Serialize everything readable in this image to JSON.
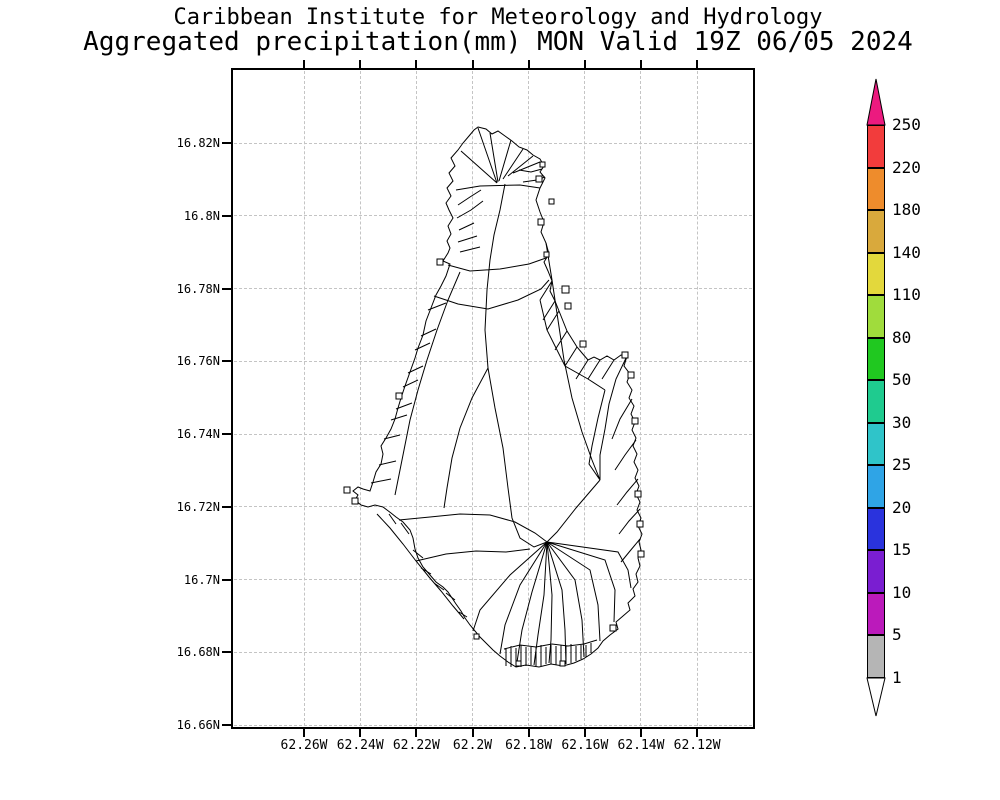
{
  "title": {
    "line1": "Caribbean Institute for Meteorology and Hydrology",
    "line2": "Aggregated precipitation(mm) MON Valid 19Z 06/05 2024"
  },
  "axes": {
    "lat_ticks": [
      {
        "label": "16.82N",
        "value": 16.82
      },
      {
        "label": "16.8N",
        "value": 16.8
      },
      {
        "label": "16.78N",
        "value": 16.78
      },
      {
        "label": "16.76N",
        "value": 16.76
      },
      {
        "label": "16.74N",
        "value": 16.74
      },
      {
        "label": "16.72N",
        "value": 16.72
      },
      {
        "label": "16.7N",
        "value": 16.7
      },
      {
        "label": "16.68N",
        "value": 16.68
      },
      {
        "label": "16.66N",
        "value": 16.66
      }
    ],
    "lon_ticks": [
      {
        "label": "62.26W",
        "value": 62.26
      },
      {
        "label": "62.24W",
        "value": 62.24
      },
      {
        "label": "62.22W",
        "value": 62.22
      },
      {
        "label": "62.2W",
        "value": 62.2
      },
      {
        "label": "62.18W",
        "value": 62.18
      },
      {
        "label": "62.16W",
        "value": 62.16
      },
      {
        "label": "62.14W",
        "value": 62.14
      },
      {
        "label": "62.12W",
        "value": 62.12
      }
    ]
  },
  "colorbar": {
    "tick_labels": [
      "1",
      "5",
      "10",
      "15",
      "20",
      "25",
      "30",
      "50",
      "80",
      "110",
      "140",
      "180",
      "220",
      "250"
    ],
    "segment_colors_bottom_to_top": [
      "#b5b5b5",
      "#bb1abb",
      "#7a1ed1",
      "#2a33dd",
      "#2fa4e6",
      "#2fc4c9",
      "#1fcb8f",
      "#20c820",
      "#a0dc3c",
      "#e3d83c",
      "#d9a93c",
      "#ee8c2c",
      "#f23c3c"
    ],
    "above_max_color": "#ec1a7f",
    "below_min_color": "#ffffff",
    "line_color": "#000000",
    "grid_color": "#c4c4c4"
  }
}
